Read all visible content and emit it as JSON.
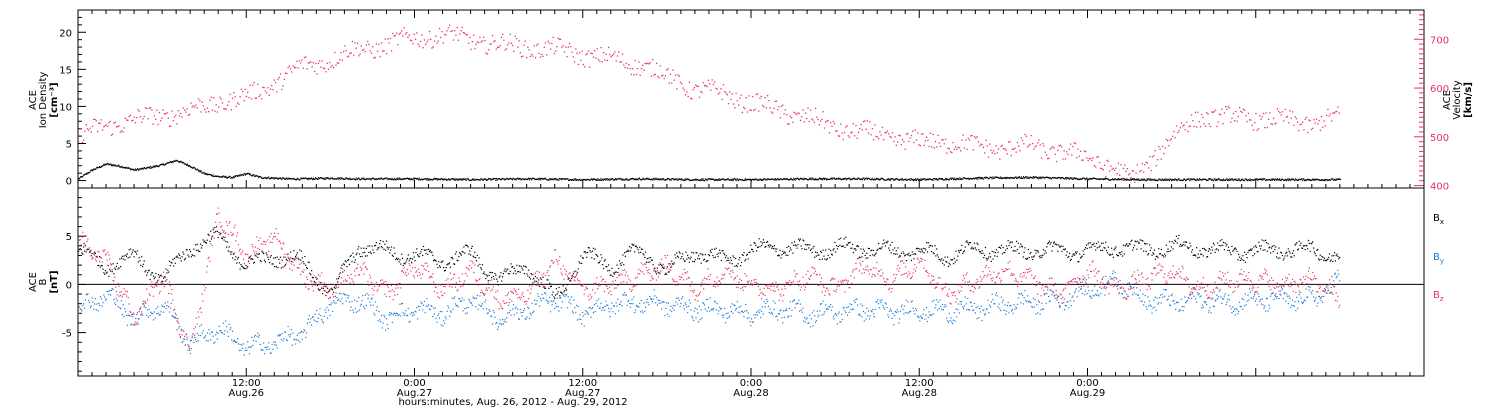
{
  "chart_data": [
    {
      "type": "scatter",
      "panel": "upper",
      "ylabel_left": [
        "ACE",
        "Ion Density",
        "[cm⁻³]"
      ],
      "ylabel_right": [
        "ACE",
        "Velocity",
        "[km/s]"
      ],
      "xlim_hours": [
        0,
        96
      ],
      "ylim_left": [
        -1,
        23
      ],
      "ylim_right": [
        395,
        760
      ],
      "yticks_left": [
        0,
        5,
        10,
        15,
        20
      ],
      "yticks_right": [
        400,
        500,
        600,
        700
      ],
      "colors": {
        "density": "#000000",
        "velocity": "#e8325f"
      },
      "series": [
        {
          "name": "density",
          "axis": "left",
          "x": [
            0,
            1,
            2,
            3,
            4,
            5,
            6,
            7,
            8,
            9,
            10,
            11,
            12,
            13,
            14,
            15,
            16,
            18,
            20,
            24,
            28,
            32,
            36,
            40,
            44,
            48,
            52,
            56,
            60,
            64,
            68,
            72,
            76,
            78,
            80,
            82,
            84,
            86,
            88,
            90
          ],
          "y": [
            0.3,
            1.5,
            2.3,
            2.0,
            1.5,
            1.8,
            2.2,
            2.8,
            2.0,
            1.0,
            0.6,
            0.5,
            1.0,
            0.5,
            0.4,
            0.3,
            0.3,
            0.4,
            0.3,
            0.3,
            0.2,
            0.3,
            0.2,
            0.3,
            0.2,
            0.2,
            0.3,
            0.3,
            0.2,
            0.4,
            0.5,
            0.3,
            0.2,
            0.2,
            0.2,
            0.2,
            0.2,
            0.2,
            0.2,
            0.2
          ]
        },
        {
          "name": "velocity",
          "axis": "right",
          "x": [
            0,
            2,
            4,
            6,
            8,
            10,
            12,
            14,
            16,
            18,
            20,
            22,
            24,
            26,
            28,
            30,
            32,
            34,
            36,
            38,
            40,
            42,
            44,
            46,
            48,
            50,
            52,
            54,
            56,
            58,
            60,
            62,
            64,
            66,
            68,
            70,
            72,
            74,
            75,
            76,
            78,
            80,
            82,
            84,
            86,
            88,
            90
          ],
          "y": [
            500,
            525,
            535,
            545,
            555,
            572,
            582,
            612,
            645,
            660,
            680,
            690,
            705,
            710,
            700,
            690,
            685,
            680,
            670,
            660,
            650,
            625,
            598,
            590,
            570,
            555,
            540,
            520,
            510,
            500,
            490,
            492,
            480,
            478,
            482,
            470,
            460,
            435,
            410,
            440,
            500,
            545,
            540,
            540,
            533,
            530,
            540
          ]
        }
      ]
    },
    {
      "type": "scatter",
      "panel": "lower",
      "ylabel_left": [
        "ACE",
        "B",
        "[nT]"
      ],
      "xlim_hours": [
        0,
        96
      ],
      "ylim": [
        -9.5,
        10
      ],
      "yticks": [
        -5,
        0,
        5
      ],
      "legend_placement": "right",
      "colors": {
        "Bx": "#000000",
        "By": "#1e78d6",
        "Bz": "#e8325f"
      },
      "series": [
        {
          "name": "Bx",
          "sub": "x",
          "x": [
            0,
            2,
            4,
            6,
            8,
            10,
            12,
            14,
            16,
            18,
            20,
            22,
            24,
            26,
            28,
            30,
            32,
            34,
            36,
            38,
            40,
            42,
            44,
            46,
            48,
            50,
            52,
            54,
            56,
            58,
            60,
            62,
            64,
            66,
            68,
            70,
            72,
            74,
            76,
            78,
            80,
            82,
            84,
            86,
            88,
            90
          ],
          "y": [
            3.5,
            2.0,
            3.0,
            0.5,
            4.0,
            5.0,
            2.0,
            3.0,
            2.5,
            -1.0,
            4.0,
            3.5,
            3.0,
            2.5,
            3.2,
            0.5,
            2.0,
            -1.5,
            3.0,
            2.0,
            3.5,
            1.5,
            3.5,
            2.5,
            3.5,
            4.0,
            3.5,
            3.8,
            3.8,
            3.5,
            3.5,
            3.0,
            3.8,
            3.5,
            3.6,
            3.5,
            3.5,
            4.0,
            3.6,
            4.0,
            3.8,
            3.5,
            3.5,
            3.7,
            3.6,
            3.0
          ]
        },
        {
          "name": "By",
          "sub": "y",
          "x": [
            0,
            2,
            4,
            6,
            8,
            10,
            12,
            14,
            16,
            18,
            20,
            22,
            24,
            26,
            28,
            30,
            32,
            34,
            36,
            38,
            40,
            42,
            44,
            46,
            48,
            50,
            52,
            54,
            56,
            58,
            60,
            62,
            64,
            66,
            68,
            70,
            72,
            74,
            76,
            78,
            80,
            82,
            84,
            86,
            88,
            90
          ],
          "y": [
            -2.5,
            -1.0,
            -3.5,
            -2.0,
            -6.0,
            -4.5,
            -6.5,
            -6.0,
            -5.0,
            -2.0,
            -1.5,
            -3.5,
            -2.5,
            -3.0,
            -1.5,
            -3.5,
            -2.5,
            -1.5,
            -3.0,
            -2.0,
            -1.8,
            -2.0,
            -2.5,
            -2.5,
            -3.0,
            -2.5,
            -3.0,
            -2.8,
            -2.5,
            -2.8,
            -2.6,
            -2.7,
            -2.5,
            -2.0,
            -1.8,
            -1.5,
            -0.5,
            0.5,
            -1.5,
            -1.8,
            -1.5,
            -1.8,
            -1.6,
            -1.5,
            -1.5,
            0.5
          ]
        },
        {
          "name": "Bz",
          "sub": "z",
          "x": [
            0,
            2,
            4,
            6,
            8,
            10,
            12,
            14,
            16,
            18,
            20,
            22,
            24,
            26,
            28,
            30,
            32,
            34,
            36,
            38,
            40,
            42,
            44,
            46,
            48,
            50,
            52,
            54,
            56,
            58,
            60,
            62,
            64,
            66,
            68,
            70,
            72,
            74,
            76,
            78,
            80,
            82,
            84,
            86,
            88,
            90
          ],
          "y": [
            4.5,
            2.5,
            -3.5,
            1.0,
            -7.0,
            7.5,
            3.0,
            5.0,
            1.0,
            -0.5,
            1.5,
            -1.0,
            2.0,
            -0.5,
            1.5,
            -1.5,
            -1.0,
            2.5,
            -0.5,
            0.0,
            1.0,
            2.0,
            -0.5,
            1.5,
            0.0,
            -0.5,
            1.0,
            -0.5,
            2.0,
            0.5,
            2.5,
            -1.0,
            0.5,
            1.5,
            0.5,
            -1.0,
            1.5,
            -0.5,
            0.5,
            1.5,
            -0.5,
            0.5,
            0.5,
            0.0,
            0.5,
            -1.5
          ]
        }
      ]
    }
  ],
  "xaxis": {
    "title": "hours:minutes, Aug. 26, 2012 - Aug. 29, 2012",
    "major_ticks": [
      {
        "hour": 12,
        "time": "12:00",
        "date": "Aug.26"
      },
      {
        "hour": 24,
        "time": "0:00",
        "date": "Aug.27"
      },
      {
        "hour": 36,
        "time": "12:00",
        "date": "Aug.27"
      },
      {
        "hour": 48,
        "time": "0:00",
        "date": "Aug.28"
      },
      {
        "hour": 60,
        "time": "12:00",
        "date": "Aug.28"
      },
      {
        "hour": 72,
        "time": "0:00",
        "date": "Aug.29"
      }
    ]
  }
}
